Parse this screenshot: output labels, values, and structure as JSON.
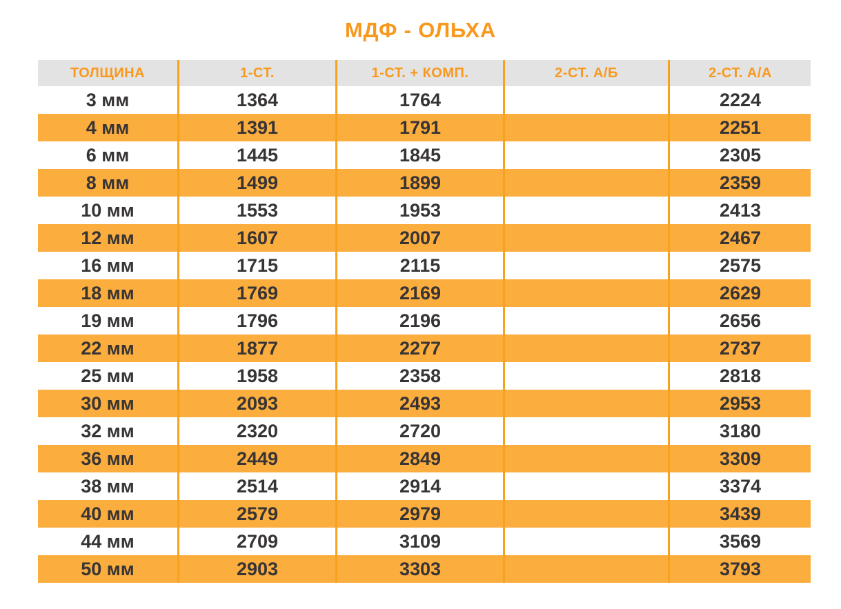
{
  "title": "МДФ - ОЛЬХА",
  "colors": {
    "row_orange": "#FBAD3E",
    "line_orange": "#F6A21D",
    "accent_orange": "#F8981D",
    "header_bg": "#E3E3E3",
    "text_dark": "#373435"
  },
  "table": {
    "headers": [
      "ТОЛЩИНА",
      "1-СТ.",
      "1-СТ. + КОМП.",
      "2-СТ. А/Б",
      "2-СТ. А/А"
    ],
    "rows": [
      {
        "thickness": "3 мм",
        "st1": "1364",
        "st1_komp": "1764",
        "st2_ab": "",
        "st2_aa": "2224"
      },
      {
        "thickness": "4 мм",
        "st1": "1391",
        "st1_komp": "1791",
        "st2_ab": "",
        "st2_aa": "2251"
      },
      {
        "thickness": "6 мм",
        "st1": "1445",
        "st1_komp": "1845",
        "st2_ab": "",
        "st2_aa": "2305"
      },
      {
        "thickness": "8 мм",
        "st1": "1499",
        "st1_komp": "1899",
        "st2_ab": "",
        "st2_aa": "2359"
      },
      {
        "thickness": "10 мм",
        "st1": "1553",
        "st1_komp": "1953",
        "st2_ab": "",
        "st2_aa": "2413"
      },
      {
        "thickness": "12 мм",
        "st1": "1607",
        "st1_komp": "2007",
        "st2_ab": "",
        "st2_aa": "2467"
      },
      {
        "thickness": "16 мм",
        "st1": "1715",
        "st1_komp": "2115",
        "st2_ab": "",
        "st2_aa": "2575"
      },
      {
        "thickness": "18 мм",
        "st1": "1769",
        "st1_komp": "2169",
        "st2_ab": "",
        "st2_aa": "2629"
      },
      {
        "thickness": "19 мм",
        "st1": "1796",
        "st1_komp": "2196",
        "st2_ab": "",
        "st2_aa": "2656"
      },
      {
        "thickness": "22 мм",
        "st1": "1877",
        "st1_komp": "2277",
        "st2_ab": "",
        "st2_aa": "2737"
      },
      {
        "thickness": "25 мм",
        "st1": "1958",
        "st1_komp": "2358",
        "st2_ab": "",
        "st2_aa": "2818"
      },
      {
        "thickness": "30 мм",
        "st1": "2093",
        "st1_komp": "2493",
        "st2_ab": "",
        "st2_aa": "2953"
      },
      {
        "thickness": "32 мм",
        "st1": "2320",
        "st1_komp": "2720",
        "st2_ab": "",
        "st2_aa": "3180"
      },
      {
        "thickness": "36 мм",
        "st1": "2449",
        "st1_komp": "2849",
        "st2_ab": "",
        "st2_aa": "3309"
      },
      {
        "thickness": "38 мм",
        "st1": "2514",
        "st1_komp": "2914",
        "st2_ab": "",
        "st2_aa": "3374"
      },
      {
        "thickness": "40 мм",
        "st1": "2579",
        "st1_komp": "2979",
        "st2_ab": "",
        "st2_aa": "3439"
      },
      {
        "thickness": "44 мм",
        "st1": "2709",
        "st1_komp": "3109",
        "st2_ab": "",
        "st2_aa": "3569"
      },
      {
        "thickness": "50 мм",
        "st1": "2903",
        "st1_komp": "3303",
        "st2_ab": "",
        "st2_aa": "3793"
      }
    ]
  },
  "chart_data": {
    "type": "table",
    "title": "МДФ - ОЛЬХА",
    "columns": [
      "ТОЛЩИНА",
      "1-СТ.",
      "1-СТ. + КОМП.",
      "2-СТ. А/Б",
      "2-СТ. А/А"
    ],
    "categories": [
      "3 мм",
      "4 мм",
      "6 мм",
      "8 мм",
      "10 мм",
      "12 мм",
      "16 мм",
      "18 мм",
      "19 мм",
      "22 мм",
      "25 мм",
      "30 мм",
      "32 мм",
      "36 мм",
      "38 мм",
      "40 мм",
      "44 мм",
      "50 мм"
    ],
    "series": [
      {
        "name": "1-СТ.",
        "values": [
          1364,
          1391,
          1445,
          1499,
          1553,
          1607,
          1715,
          1769,
          1796,
          1877,
          1958,
          2093,
          2320,
          2449,
          2514,
          2579,
          2709,
          2903
        ]
      },
      {
        "name": "1-СТ. + КОМП.",
        "values": [
          1764,
          1791,
          1845,
          1899,
          1953,
          2007,
          2115,
          2169,
          2196,
          2277,
          2358,
          2493,
          2720,
          2849,
          2914,
          2979,
          3109,
          3303
        ]
      },
      {
        "name": "2-СТ. А/Б",
        "values": [
          null,
          null,
          null,
          null,
          null,
          null,
          null,
          null,
          null,
          null,
          null,
          null,
          null,
          null,
          null,
          null,
          null,
          null
        ]
      },
      {
        "name": "2-СТ. А/А",
        "values": [
          2224,
          2251,
          2305,
          2359,
          2413,
          2467,
          2575,
          2629,
          2656,
          2737,
          2818,
          2953,
          3180,
          3309,
          3374,
          3439,
          3569,
          3793
        ]
      }
    ],
    "layout": {
      "striped_rows": true,
      "stripe_color": "#FBAD3E",
      "header_bg": "#E3E3E3",
      "accent_color": "#F8981D"
    }
  }
}
